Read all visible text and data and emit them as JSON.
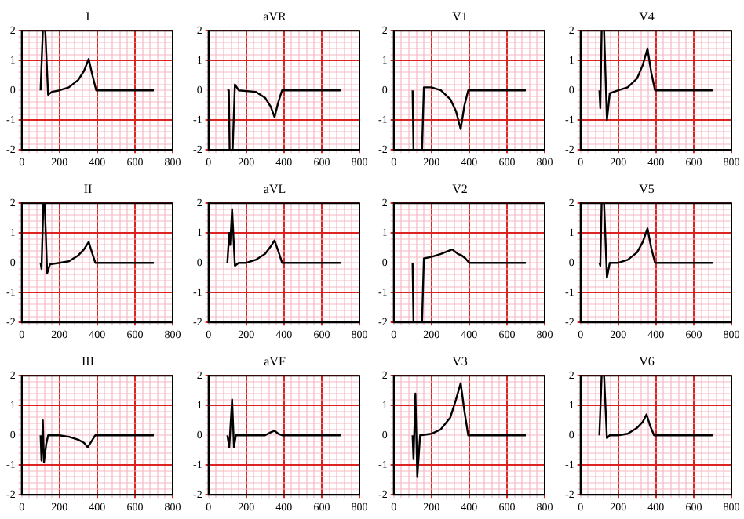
{
  "chart_data": [
    {
      "type": "line",
      "title": "I",
      "color": "#000000",
      "x": [
        100,
        112,
        118,
        125,
        140,
        160,
        200,
        250,
        300,
        330,
        355,
        375,
        395,
        700
      ],
      "values": [
        0,
        2,
        null,
        2,
        -0.15,
        -0.05,
        0,
        0.1,
        0.35,
        0.65,
        1.05,
        0.5,
        0,
        0
      ],
      "xlim": [
        0,
        800
      ],
      "ylim": [
        -2,
        2
      ],
      "xticks": [
        0,
        {
          "value": 40,
          "label": null
        },
        {
          "value": 80,
          "label": null
        },
        {
          "value": 120,
          "label": null
        },
        {
          "value": 160,
          "label": null
        },
        200,
        {
          "value": 240,
          "label": null
        },
        {
          "value": 280,
          "label": null
        },
        {
          "value": 320,
          "label": null
        },
        {
          "value": 360,
          "label": null
        },
        400,
        {
          "value": 440,
          "label": null
        },
        {
          "value": 480,
          "label": null
        },
        {
          "value": 520,
          "label": null
        },
        {
          "value": 560,
          "label": null
        },
        600,
        {
          "value": 640,
          "label": null
        },
        {
          "value": 680,
          "label": null
        },
        {
          "value": 720,
          "label": null
        },
        {
          "value": 760,
          "label": null
        },
        800
      ],
      "yticks": [
        -2,
        {
          "value": -1.8,
          "label": null
        },
        {
          "value": -1.6,
          "label": null
        },
        {
          "value": -1.4,
          "label": null
        },
        {
          "value": -1.2,
          "label": null
        },
        -1,
        {
          "value": -0.8,
          "label": null
        },
        {
          "value": -0.6,
          "label": null
        },
        {
          "value": -0.4,
          "label": null
        },
        {
          "value": -0.2,
          "label": null
        },
        0,
        {
          "value": 0.2,
          "label": null
        },
        {
          "value": 0.4,
          "label": null
        },
        {
          "value": 0.6,
          "label": null
        },
        {
          "value": 0.8,
          "label": null
        },
        1,
        {
          "value": 1.2,
          "label": null
        },
        {
          "value": 1.4,
          "label": null
        },
        {
          "value": 1.6,
          "label": null
        },
        {
          "value": 1.8,
          "label": null
        },
        2
      ],
      "grid": true
    },
    {
      "type": "line",
      "title": "aVR",
      "color": "#000000",
      "x": [
        100,
        108,
        112,
        120,
        128,
        140,
        160,
        250,
        300,
        330,
        350,
        370,
        390,
        700
      ],
      "values": [
        0,
        0,
        -2,
        null,
        -2,
        0.2,
        0,
        -0.05,
        -0.25,
        -0.55,
        -0.9,
        -0.4,
        0,
        0
      ],
      "xlim": [
        0,
        800
      ],
      "ylim": [
        -2,
        2
      ],
      "xticks": [
        0,
        {
          "value": 40,
          "label": null
        },
        {
          "value": 80,
          "label": null
        },
        {
          "value": 120,
          "label": null
        },
        {
          "value": 160,
          "label": null
        },
        200,
        {
          "value": 240,
          "label": null
        },
        {
          "value": 280,
          "label": null
        },
        {
          "value": 320,
          "label": null
        },
        {
          "value": 360,
          "label": null
        },
        400,
        {
          "value": 440,
          "label": null
        },
        {
          "value": 480,
          "label": null
        },
        {
          "value": 520,
          "label": null
        },
        {
          "value": 560,
          "label": null
        },
        600,
        {
          "value": 640,
          "label": null
        },
        {
          "value": 680,
          "label": null
        },
        {
          "value": 720,
          "label": null
        },
        {
          "value": 760,
          "label": null
        },
        800
      ],
      "yticks": [
        -2,
        {
          "value": -1.8,
          "label": null
        },
        {
          "value": -1.6,
          "label": null
        },
        {
          "value": -1.4,
          "label": null
        },
        {
          "value": -1.2,
          "label": null
        },
        -1,
        {
          "value": -0.8,
          "label": null
        },
        {
          "value": -0.6,
          "label": null
        },
        {
          "value": -0.4,
          "label": null
        },
        {
          "value": -0.2,
          "label": null
        },
        0,
        {
          "value": 0.2,
          "label": null
        },
        {
          "value": 0.4,
          "label": null
        },
        {
          "value": 0.6,
          "label": null
        },
        {
          "value": 0.8,
          "label": null
        },
        1,
        {
          "value": 1.2,
          "label": null
        },
        {
          "value": 1.4,
          "label": null
        },
        {
          "value": 1.6,
          "label": null
        },
        {
          "value": 1.8,
          "label": null
        },
        2
      ],
      "grid": true
    },
    {
      "type": "line",
      "title": "V1",
      "color": "#000000",
      "x": [
        100,
        105,
        125,
        150,
        160,
        200,
        250,
        300,
        330,
        355,
        375,
        395,
        700
      ],
      "values": [
        0,
        -2,
        null,
        -2,
        0.1,
        0.1,
        0,
        -0.3,
        -0.7,
        -1.3,
        -0.5,
        0,
        0
      ],
      "xlim": [
        0,
        800
      ],
      "ylim": [
        -2,
        2
      ],
      "xticks": [
        0,
        {
          "value": 40,
          "label": null
        },
        {
          "value": 80,
          "label": null
        },
        {
          "value": 120,
          "label": null
        },
        {
          "value": 160,
          "label": null
        },
        200,
        {
          "value": 240,
          "label": null
        },
        {
          "value": 280,
          "label": null
        },
        {
          "value": 320,
          "label": null
        },
        {
          "value": 360,
          "label": null
        },
        400,
        {
          "value": 440,
          "label": null
        },
        {
          "value": 480,
          "label": null
        },
        {
          "value": 520,
          "label": null
        },
        {
          "value": 560,
          "label": null
        },
        600,
        {
          "value": 640,
          "label": null
        },
        {
          "value": 680,
          "label": null
        },
        {
          "value": 720,
          "label": null
        },
        {
          "value": 760,
          "label": null
        },
        800
      ],
      "yticks": [
        -2,
        {
          "value": -1.8,
          "label": null
        },
        {
          "value": -1.6,
          "label": null
        },
        {
          "value": -1.4,
          "label": null
        },
        {
          "value": -1.2,
          "label": null
        },
        -1,
        {
          "value": -0.8,
          "label": null
        },
        {
          "value": -0.6,
          "label": null
        },
        {
          "value": -0.4,
          "label": null
        },
        {
          "value": -0.2,
          "label": null
        },
        0,
        {
          "value": 0.2,
          "label": null
        },
        {
          "value": 0.4,
          "label": null
        },
        {
          "value": 0.6,
          "label": null
        },
        {
          "value": 0.8,
          "label": null
        },
        1,
        {
          "value": 1.2,
          "label": null
        },
        {
          "value": 1.4,
          "label": null
        },
        {
          "value": 1.6,
          "label": null
        },
        {
          "value": 1.8,
          "label": null
        },
        2
      ],
      "grid": true
    },
    {
      "type": "line",
      "title": "V4",
      "color": "#000000",
      "x": [
        100,
        105,
        112,
        118,
        125,
        140,
        155,
        200,
        250,
        300,
        330,
        355,
        375,
        395,
        700
      ],
      "values": [
        0,
        -0.6,
        2,
        null,
        2,
        -1,
        -0.1,
        0,
        0.1,
        0.4,
        0.85,
        1.4,
        0.6,
        0,
        0
      ],
      "xlim": [
        0,
        800
      ],
      "ylim": [
        -2,
        2
      ],
      "xticks": [
        0,
        {
          "value": 40,
          "label": null
        },
        {
          "value": 80,
          "label": null
        },
        {
          "value": 120,
          "label": null
        },
        {
          "value": 160,
          "label": null
        },
        200,
        {
          "value": 240,
          "label": null
        },
        {
          "value": 280,
          "label": null
        },
        {
          "value": 320,
          "label": null
        },
        {
          "value": 360,
          "label": null
        },
        400,
        {
          "value": 440,
          "label": null
        },
        {
          "value": 480,
          "label": null
        },
        {
          "value": 520,
          "label": null
        },
        {
          "value": 560,
          "label": null
        },
        600,
        {
          "value": 640,
          "label": null
        },
        {
          "value": 680,
          "label": null
        },
        {
          "value": 720,
          "label": null
        },
        {
          "value": 760,
          "label": null
        },
        800
      ],
      "yticks": [
        -2,
        {
          "value": -1.8,
          "label": null
        },
        {
          "value": -1.6,
          "label": null
        },
        {
          "value": -1.4,
          "label": null
        },
        {
          "value": -1.2,
          "label": null
        },
        -1,
        {
          "value": -0.8,
          "label": null
        },
        {
          "value": -0.6,
          "label": null
        },
        {
          "value": -0.4,
          "label": null
        },
        {
          "value": -0.2,
          "label": null
        },
        0,
        {
          "value": 0.2,
          "label": null
        },
        {
          "value": 0.4,
          "label": null
        },
        {
          "value": 0.6,
          "label": null
        },
        {
          "value": 0.8,
          "label": null
        },
        1,
        {
          "value": 1.2,
          "label": null
        },
        {
          "value": 1.4,
          "label": null
        },
        {
          "value": 1.6,
          "label": null
        },
        {
          "value": 1.8,
          "label": null
        },
        2
      ],
      "grid": true
    },
    {
      "type": "line",
      "title": "II",
      "color": "#000000",
      "x": [
        100,
        105,
        115,
        122,
        135,
        150,
        200,
        250,
        300,
        330,
        355,
        375,
        390,
        700
      ],
      "values": [
        0,
        -0.2,
        2,
        2,
        -0.35,
        -0.05,
        0,
        0.05,
        0.25,
        0.45,
        0.7,
        0.3,
        0,
        0
      ],
      "xlim": [
        0,
        800
      ],
      "ylim": [
        -2,
        2
      ],
      "xticks": [
        0,
        {
          "value": 40,
          "label": null
        },
        {
          "value": 80,
          "label": null
        },
        {
          "value": 120,
          "label": null
        },
        {
          "value": 160,
          "label": null
        },
        200,
        {
          "value": 240,
          "label": null
        },
        {
          "value": 280,
          "label": null
        },
        {
          "value": 320,
          "label": null
        },
        {
          "value": 360,
          "label": null
        },
        400,
        {
          "value": 440,
          "label": null
        },
        {
          "value": 480,
          "label": null
        },
        {
          "value": 520,
          "label": null
        },
        {
          "value": 560,
          "label": null
        },
        600,
        {
          "value": 640,
          "label": null
        },
        {
          "value": 680,
          "label": null
        },
        {
          "value": 720,
          "label": null
        },
        {
          "value": 760,
          "label": null
        },
        800
      ],
      "yticks": [
        -2,
        {
          "value": -1.8,
          "label": null
        },
        {
          "value": -1.6,
          "label": null
        },
        {
          "value": -1.4,
          "label": null
        },
        {
          "value": -1.2,
          "label": null
        },
        -1,
        {
          "value": -0.8,
          "label": null
        },
        {
          "value": -0.6,
          "label": null
        },
        {
          "value": -0.4,
          "label": null
        },
        {
          "value": -0.2,
          "label": null
        },
        0,
        {
          "value": 0.2,
          "label": null
        },
        {
          "value": 0.4,
          "label": null
        },
        {
          "value": 0.6,
          "label": null
        },
        {
          "value": 0.8,
          "label": null
        },
        1,
        {
          "value": 1.2,
          "label": null
        },
        {
          "value": 1.4,
          "label": null
        },
        {
          "value": 1.6,
          "label": null
        },
        {
          "value": 1.8,
          "label": null
        },
        2
      ],
      "grid": true
    },
    {
      "type": "line",
      "title": "aVL",
      "color": "#000000",
      "x": [
        100,
        110,
        115,
        125,
        140,
        160,
        200,
        250,
        300,
        330,
        350,
        375,
        390,
        700
      ],
      "values": [
        0,
        1,
        0.6,
        1.8,
        -0.1,
        0,
        0,
        0.1,
        0.3,
        0.55,
        0.75,
        0.3,
        0,
        0
      ],
      "xlim": [
        0,
        800
      ],
      "ylim": [
        -2,
        2
      ],
      "xticks": [
        0,
        {
          "value": 40,
          "label": null
        },
        {
          "value": 80,
          "label": null
        },
        {
          "value": 120,
          "label": null
        },
        {
          "value": 160,
          "label": null
        },
        200,
        {
          "value": 240,
          "label": null
        },
        {
          "value": 280,
          "label": null
        },
        {
          "value": 320,
          "label": null
        },
        {
          "value": 360,
          "label": null
        },
        400,
        {
          "value": 440,
          "label": null
        },
        {
          "value": 480,
          "label": null
        },
        {
          "value": 520,
          "label": null
        },
        {
          "value": 560,
          "label": null
        },
        600,
        {
          "value": 640,
          "label": null
        },
        {
          "value": 680,
          "label": null
        },
        {
          "value": 720,
          "label": null
        },
        {
          "value": 760,
          "label": null
        },
        800
      ],
      "yticks": [
        -2,
        {
          "value": -1.8,
          "label": null
        },
        {
          "value": -1.6,
          "label": null
        },
        {
          "value": -1.4,
          "label": null
        },
        {
          "value": -1.2,
          "label": null
        },
        -1,
        {
          "value": -0.8,
          "label": null
        },
        {
          "value": -0.6,
          "label": null
        },
        {
          "value": -0.4,
          "label": null
        },
        {
          "value": -0.2,
          "label": null
        },
        0,
        {
          "value": 0.2,
          "label": null
        },
        {
          "value": 0.4,
          "label": null
        },
        {
          "value": 0.6,
          "label": null
        },
        {
          "value": 0.8,
          "label": null
        },
        1,
        {
          "value": 1.2,
          "label": null
        },
        {
          "value": 1.4,
          "label": null
        },
        {
          "value": 1.6,
          "label": null
        },
        {
          "value": 1.8,
          "label": null
        },
        2
      ],
      "grid": true
    },
    {
      "type": "line",
      "title": "V2",
      "color": "#000000",
      "x": [
        100,
        105,
        125,
        150,
        160,
        200,
        250,
        310,
        340,
        360,
        380,
        400,
        700
      ],
      "values": [
        0,
        -2,
        null,
        -2,
        0.15,
        0.2,
        0.3,
        0.45,
        0.3,
        0.25,
        0.15,
        0,
        0
      ],
      "xlim": [
        0,
        800
      ],
      "ylim": [
        -2,
        2
      ],
      "xticks": [
        0,
        {
          "value": 40,
          "label": null
        },
        {
          "value": 80,
          "label": null
        },
        {
          "value": 120,
          "label": null
        },
        {
          "value": 160,
          "label": null
        },
        200,
        {
          "value": 240,
          "label": null
        },
        {
          "value": 280,
          "label": null
        },
        {
          "value": 320,
          "label": null
        },
        {
          "value": 360,
          "label": null
        },
        400,
        {
          "value": 440,
          "label": null
        },
        {
          "value": 480,
          "label": null
        },
        {
          "value": 520,
          "label": null
        },
        {
          "value": 560,
          "label": null
        },
        600,
        {
          "value": 640,
          "label": null
        },
        {
          "value": 680,
          "label": null
        },
        {
          "value": 720,
          "label": null
        },
        {
          "value": 760,
          "label": null
        },
        800
      ],
      "yticks": [
        -2,
        {
          "value": -1.8,
          "label": null
        },
        {
          "value": -1.6,
          "label": null
        },
        {
          "value": -1.4,
          "label": null
        },
        {
          "value": -1.2,
          "label": null
        },
        -1,
        {
          "value": -0.8,
          "label": null
        },
        {
          "value": -0.6,
          "label": null
        },
        {
          "value": -0.4,
          "label": null
        },
        {
          "value": -0.2,
          "label": null
        },
        0,
        {
          "value": 0.2,
          "label": null
        },
        {
          "value": 0.4,
          "label": null
        },
        {
          "value": 0.6,
          "label": null
        },
        {
          "value": 0.8,
          "label": null
        },
        1,
        {
          "value": 1.2,
          "label": null
        },
        {
          "value": 1.4,
          "label": null
        },
        {
          "value": 1.6,
          "label": null
        },
        {
          "value": 1.8,
          "label": null
        },
        2
      ],
      "grid": true
    },
    {
      "type": "line",
      "title": "V5",
      "color": "#000000",
      "x": [
        100,
        105,
        112,
        118,
        125,
        140,
        155,
        200,
        250,
        300,
        330,
        355,
        375,
        395,
        700
      ],
      "values": [
        0,
        -0.1,
        2,
        null,
        2,
        -0.5,
        0,
        0,
        0.1,
        0.35,
        0.7,
        1.15,
        0.5,
        0,
        0
      ],
      "xlim": [
        0,
        800
      ],
      "ylim": [
        -2,
        2
      ],
      "xticks": [
        0,
        {
          "value": 40,
          "label": null
        },
        {
          "value": 80,
          "label": null
        },
        {
          "value": 120,
          "label": null
        },
        {
          "value": 160,
          "label": null
        },
        200,
        {
          "value": 240,
          "label": null
        },
        {
          "value": 280,
          "label": null
        },
        {
          "value": 320,
          "label": null
        },
        {
          "value": 360,
          "label": null
        },
        400,
        {
          "value": 440,
          "label": null
        },
        {
          "value": 480,
          "label": null
        },
        {
          "value": 520,
          "label": null
        },
        {
          "value": 560,
          "label": null
        },
        600,
        {
          "value": 640,
          "label": null
        },
        {
          "value": 680,
          "label": null
        },
        {
          "value": 720,
          "label": null
        },
        {
          "value": 760,
          "label": null
        },
        800
      ],
      "yticks": [
        -2,
        {
          "value": -1.8,
          "label": null
        },
        {
          "value": -1.6,
          "label": null
        },
        {
          "value": -1.4,
          "label": null
        },
        {
          "value": -1.2,
          "label": null
        },
        -1,
        {
          "value": -0.8,
          "label": null
        },
        {
          "value": -0.6,
          "label": null
        },
        {
          "value": -0.4,
          "label": null
        },
        {
          "value": -0.2,
          "label": null
        },
        0,
        {
          "value": 0.2,
          "label": null
        },
        {
          "value": 0.4,
          "label": null
        },
        {
          "value": 0.6,
          "label": null
        },
        {
          "value": 0.8,
          "label": null
        },
        1,
        {
          "value": 1.2,
          "label": null
        },
        {
          "value": 1.4,
          "label": null
        },
        {
          "value": 1.6,
          "label": null
        },
        {
          "value": 1.8,
          "label": null
        },
        2
      ],
      "grid": true
    },
    {
      "type": "line",
      "title": "III",
      "color": "#000000",
      "x": [
        100,
        105,
        112,
        118,
        130,
        140,
        200,
        250,
        300,
        330,
        350,
        370,
        390,
        700
      ],
      "values": [
        0,
        -0.85,
        0.5,
        -0.9,
        -0.3,
        0,
        0,
        -0.05,
        -0.15,
        -0.25,
        -0.4,
        -0.2,
        0,
        0
      ],
      "xlim": [
        0,
        800
      ],
      "ylim": [
        -2,
        2
      ],
      "xticks": [
        0,
        {
          "value": 40,
          "label": null
        },
        {
          "value": 80,
          "label": null
        },
        {
          "value": 120,
          "label": null
        },
        {
          "value": 160,
          "label": null
        },
        200,
        {
          "value": 240,
          "label": null
        },
        {
          "value": 280,
          "label": null
        },
        {
          "value": 320,
          "label": null
        },
        {
          "value": 360,
          "label": null
        },
        400,
        {
          "value": 440,
          "label": null
        },
        {
          "value": 480,
          "label": null
        },
        {
          "value": 520,
          "label": null
        },
        {
          "value": 560,
          "label": null
        },
        600,
        {
          "value": 640,
          "label": null
        },
        {
          "value": 680,
          "label": null
        },
        {
          "value": 720,
          "label": null
        },
        {
          "value": 760,
          "label": null
        },
        800
      ],
      "yticks": [
        -2,
        {
          "value": -1.8,
          "label": null
        },
        {
          "value": -1.6,
          "label": null
        },
        {
          "value": -1.4,
          "label": null
        },
        {
          "value": -1.2,
          "label": null
        },
        -1,
        {
          "value": -0.8,
          "label": null
        },
        {
          "value": -0.6,
          "label": null
        },
        {
          "value": -0.4,
          "label": null
        },
        {
          "value": -0.2,
          "label": null
        },
        0,
        {
          "value": 0.2,
          "label": null
        },
        {
          "value": 0.4,
          "label": null
        },
        {
          "value": 0.6,
          "label": null
        },
        {
          "value": 0.8,
          "label": null
        },
        1,
        {
          "value": 1.2,
          "label": null
        },
        {
          "value": 1.4,
          "label": null
        },
        {
          "value": 1.6,
          "label": null
        },
        {
          "value": 1.8,
          "label": null
        },
        2
      ],
      "grid": true
    },
    {
      "type": "line",
      "title": "aVF",
      "color": "#000000",
      "x": [
        100,
        110,
        125,
        135,
        145,
        300,
        330,
        350,
        370,
        390,
        700
      ],
      "values": [
        0,
        -0.4,
        1.2,
        -0.4,
        0,
        0,
        0.1,
        0.15,
        0.05,
        0,
        0
      ],
      "xlim": [
        0,
        800
      ],
      "ylim": [
        -2,
        2
      ],
      "xticks": [
        0,
        {
          "value": 40,
          "label": null
        },
        {
          "value": 80,
          "label": null
        },
        {
          "value": 120,
          "label": null
        },
        {
          "value": 160,
          "label": null
        },
        200,
        {
          "value": 240,
          "label": null
        },
        {
          "value": 280,
          "label": null
        },
        {
          "value": 320,
          "label": null
        },
        {
          "value": 360,
          "label": null
        },
        400,
        {
          "value": 440,
          "label": null
        },
        {
          "value": 480,
          "label": null
        },
        {
          "value": 520,
          "label": null
        },
        {
          "value": 560,
          "label": null
        },
        600,
        {
          "value": 640,
          "label": null
        },
        {
          "value": 680,
          "label": null
        },
        {
          "value": 720,
          "label": null
        },
        {
          "value": 760,
          "label": null
        },
        800
      ],
      "yticks": [
        -2,
        {
          "value": -1.8,
          "label": null
        },
        {
          "value": -1.6,
          "label": null
        },
        {
          "value": -1.4,
          "label": null
        },
        {
          "value": -1.2,
          "label": null
        },
        -1,
        {
          "value": -0.8,
          "label": null
        },
        {
          "value": -0.6,
          "label": null
        },
        {
          "value": -0.4,
          "label": null
        },
        {
          "value": -0.2,
          "label": null
        },
        0,
        {
          "value": 0.2,
          "label": null
        },
        {
          "value": 0.4,
          "label": null
        },
        {
          "value": 0.6,
          "label": null
        },
        {
          "value": 0.8,
          "label": null
        },
        1,
        {
          "value": 1.2,
          "label": null
        },
        {
          "value": 1.4,
          "label": null
        },
        {
          "value": 1.6,
          "label": null
        },
        {
          "value": 1.8,
          "label": null
        },
        2
      ],
      "grid": true
    },
    {
      "type": "line",
      "title": "V3",
      "color": "#000000",
      "x": [
        100,
        105,
        115,
        125,
        140,
        200,
        250,
        300,
        330,
        355,
        375,
        395,
        700
      ],
      "values": [
        0,
        -0.8,
        1.4,
        -1.4,
        0,
        0.05,
        0.2,
        0.6,
        1.2,
        1.75,
        0.8,
        0,
        0
      ],
      "xlim": [
        0,
        800
      ],
      "ylim": [
        -2,
        2
      ],
      "xticks": [
        0,
        {
          "value": 40,
          "label": null
        },
        {
          "value": 80,
          "label": null
        },
        {
          "value": 120,
          "label": null
        },
        {
          "value": 160,
          "label": null
        },
        200,
        {
          "value": 240,
          "label": null
        },
        {
          "value": 280,
          "label": null
        },
        {
          "value": 320,
          "label": null
        },
        {
          "value": 360,
          "label": null
        },
        400,
        {
          "value": 440,
          "label": null
        },
        {
          "value": 480,
          "label": null
        },
        {
          "value": 520,
          "label": null
        },
        {
          "value": 560,
          "label": null
        },
        600,
        {
          "value": 640,
          "label": null
        },
        {
          "value": 680,
          "label": null
        },
        {
          "value": 720,
          "label": null
        },
        {
          "value": 760,
          "label": null
        },
        800
      ],
      "yticks": [
        -2,
        {
          "value": -1.8,
          "label": null
        },
        {
          "value": -1.6,
          "label": null
        },
        {
          "value": -1.4,
          "label": null
        },
        {
          "value": -1.2,
          "label": null
        },
        -1,
        {
          "value": -0.8,
          "label": null
        },
        {
          "value": -0.6,
          "label": null
        },
        {
          "value": -0.4,
          "label": null
        },
        {
          "value": -0.2,
          "label": null
        },
        0,
        {
          "value": 0.2,
          "label": null
        },
        {
          "value": 0.4,
          "label": null
        },
        {
          "value": 0.6,
          "label": null
        },
        {
          "value": 0.8,
          "label": null
        },
        1,
        {
          "value": 1.2,
          "label": null
        },
        {
          "value": 1.4,
          "label": null
        },
        {
          "value": 1.6,
          "label": null
        },
        {
          "value": 1.8,
          "label": null
        },
        2
      ],
      "grid": true
    },
    {
      "type": "line",
      "title": "V6",
      "color": "#000000",
      "x": [
        100,
        112,
        118,
        125,
        140,
        155,
        200,
        250,
        300,
        330,
        350,
        370,
        390,
        700
      ],
      "values": [
        0,
        2,
        null,
        2,
        -0.1,
        0,
        0,
        0.05,
        0.25,
        0.45,
        0.7,
        0.3,
        0,
        0
      ],
      "xlim": [
        0,
        800
      ],
      "ylim": [
        -2,
        2
      ],
      "xticks": [
        0,
        {
          "value": 40,
          "label": null
        },
        {
          "value": 80,
          "label": null
        },
        {
          "value": 120,
          "label": null
        },
        {
          "value": 160,
          "label": null
        },
        200,
        {
          "value": 240,
          "label": null
        },
        {
          "value": 280,
          "label": null
        },
        {
          "value": 320,
          "label": null
        },
        {
          "value": 360,
          "label": null
        },
        400,
        {
          "value": 440,
          "label": null
        },
        {
          "value": 480,
          "label": null
        },
        {
          "value": 520,
          "label": null
        },
        {
          "value": 560,
          "label": null
        },
        600,
        {
          "value": 640,
          "label": null
        },
        {
          "value": 680,
          "label": null
        },
        {
          "value": 720,
          "label": null
        },
        {
          "value": 760,
          "label": null
        },
        800
      ],
      "yticks": [
        -2,
        {
          "value": -1.8,
          "label": null
        },
        {
          "value": -1.6,
          "label": null
        },
        {
          "value": -1.4,
          "label": null
        },
        {
          "value": -1.2,
          "label": null
        },
        -1,
        {
          "value": -0.8,
          "label": null
        },
        {
          "value": -0.6,
          "label": null
        },
        {
          "value": -0.4,
          "label": null
        },
        {
          "value": -0.2,
          "label": null
        },
        0,
        {
          "value": 0.2,
          "label": null
        },
        {
          "value": 0.4,
          "label": null
        },
        {
          "value": 0.6,
          "label": null
        },
        {
          "value": 0.8,
          "label": null
        },
        1,
        {
          "value": 1.2,
          "label": null
        },
        {
          "value": 1.4,
          "label": null
        },
        {
          "value": 1.6,
          "label": null
        },
        {
          "value": 1.8,
          "label": null
        },
        2
      ],
      "grid": true
    }
  ]
}
